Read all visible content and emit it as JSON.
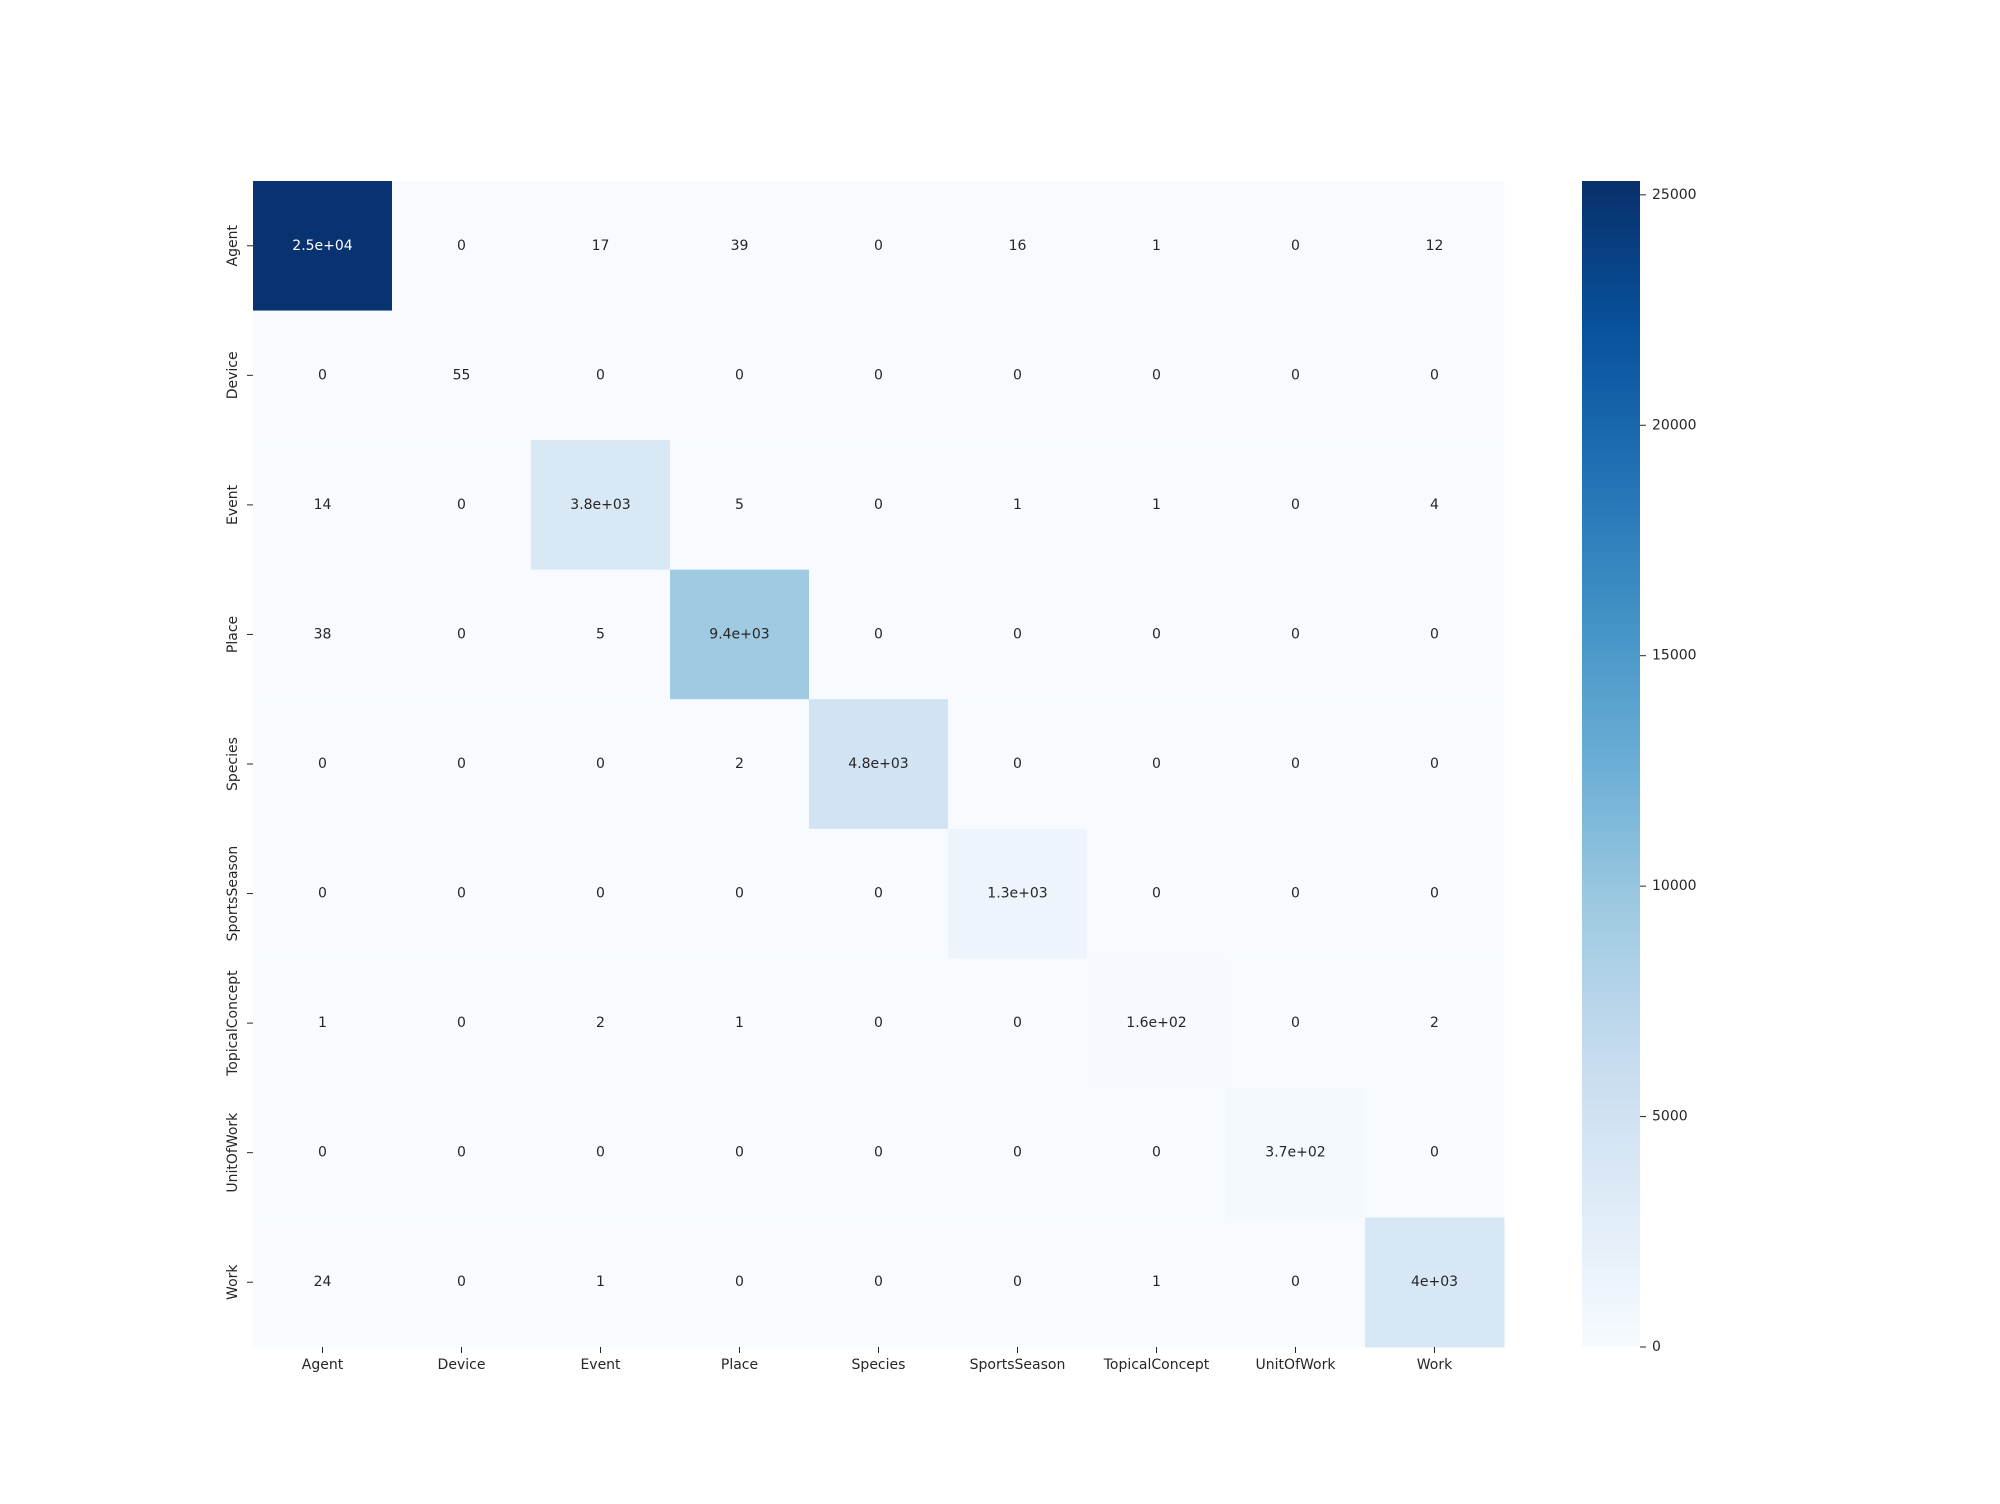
{
  "chart_data": {
    "type": "heatmap",
    "title": "",
    "xlabel": "",
    "ylabel": "",
    "x_categories": [
      "Agent",
      "Device",
      "Event",
      "Place",
      "Species",
      "SportsSeason",
      "TopicalConcept",
      "UnitOfWork",
      "Work"
    ],
    "y_categories": [
      "Agent",
      "Device",
      "Event",
      "Place",
      "Species",
      "SportsSeason",
      "TopicalConcept",
      "UnitOfWork",
      "Work"
    ],
    "values": [
      [
        25000,
        0,
        17,
        39,
        0,
        16,
        1,
        0,
        12
      ],
      [
        0,
        55,
        0,
        0,
        0,
        0,
        0,
        0,
        0
      ],
      [
        14,
        0,
        3800,
        5,
        0,
        1,
        1,
        0,
        4
      ],
      [
        38,
        0,
        5,
        9400,
        0,
        0,
        0,
        0,
        0
      ],
      [
        0,
        0,
        0,
        2,
        4800,
        0,
        0,
        0,
        0
      ],
      [
        0,
        0,
        0,
        0,
        0,
        1300,
        0,
        0,
        0
      ],
      [
        1,
        0,
        2,
        1,
        0,
        0,
        160,
        0,
        2
      ],
      [
        0,
        0,
        0,
        0,
        0,
        0,
        0,
        370,
        0
      ],
      [
        24,
        0,
        1,
        0,
        0,
        0,
        1,
        0,
        4000
      ]
    ],
    "annotations": [
      [
        "2.5e+04",
        "0",
        "17",
        "39",
        "0",
        "16",
        "1",
        "0",
        "12"
      ],
      [
        "0",
        "55",
        "0",
        "0",
        "0",
        "0",
        "0",
        "0",
        "0"
      ],
      [
        "14",
        "0",
        "3.8e+03",
        "5",
        "0",
        "1",
        "1",
        "0",
        "4"
      ],
      [
        "38",
        "0",
        "5",
        "9.4e+03",
        "0",
        "0",
        "0",
        "0",
        "0"
      ],
      [
        "0",
        "0",
        "0",
        "2",
        "4.8e+03",
        "0",
        "0",
        "0",
        "0"
      ],
      [
        "0",
        "0",
        "0",
        "0",
        "0",
        "1.3e+03",
        "0",
        "0",
        "0"
      ],
      [
        "1",
        "0",
        "2",
        "1",
        "0",
        "0",
        "1.6e+02",
        "0",
        "2"
      ],
      [
        "0",
        "0",
        "0",
        "0",
        "0",
        "0",
        "0",
        "3.7e+02",
        "0"
      ],
      [
        "24",
        "0",
        "1",
        "0",
        "0",
        "0",
        "1",
        "0",
        "4e+03"
      ]
    ],
    "colorbar": {
      "vmin": 0,
      "vmax": 25300,
      "ticks": [
        0,
        5000,
        10000,
        15000,
        20000,
        25000
      ],
      "tick_labels": [
        "0",
        "5000",
        "10000",
        "15000",
        "20000",
        "25000"
      ]
    },
    "colormap": "Blues",
    "colors": {
      "low": "#f7fbff",
      "high": "#08306b",
      "annotation_dark": "#262626",
      "annotation_light": "#ffffff"
    },
    "grid": false,
    "legend": "colorbar-right"
  }
}
